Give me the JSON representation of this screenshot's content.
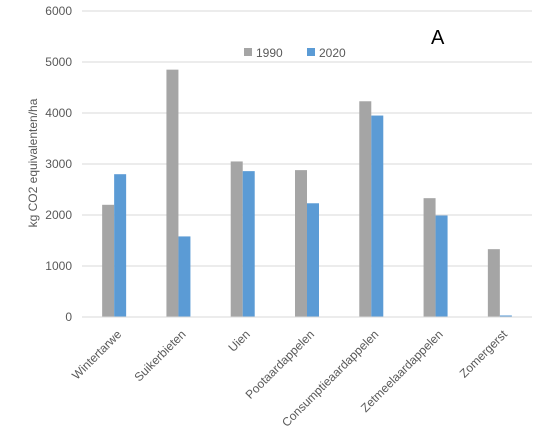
{
  "chart_data": {
    "type": "bar",
    "panel_label": "A",
    "ylabel": "kg CO2 equivalenten/ha",
    "xlabel": "",
    "ylim": [
      0,
      6000
    ],
    "ytick_step": 1000,
    "grid": true,
    "legend_position": "top-center",
    "categories": [
      "Wintertarwe",
      "Suikerbieten",
      "Uien",
      "Pootaardappelen",
      "Consumptieaardappelen",
      "Zetmeelaardappelen",
      "Zomergerst"
    ],
    "series": [
      {
        "name": "1990",
        "color": "#a5a5a5",
        "values": [
          2200,
          4850,
          3050,
          2880,
          4230,
          2330,
          1330
        ]
      },
      {
        "name": "2020",
        "color": "#5b9bd5",
        "values": [
          2800,
          1580,
          2860,
          2230,
          3950,
          1990,
          30
        ]
      }
    ]
  }
}
